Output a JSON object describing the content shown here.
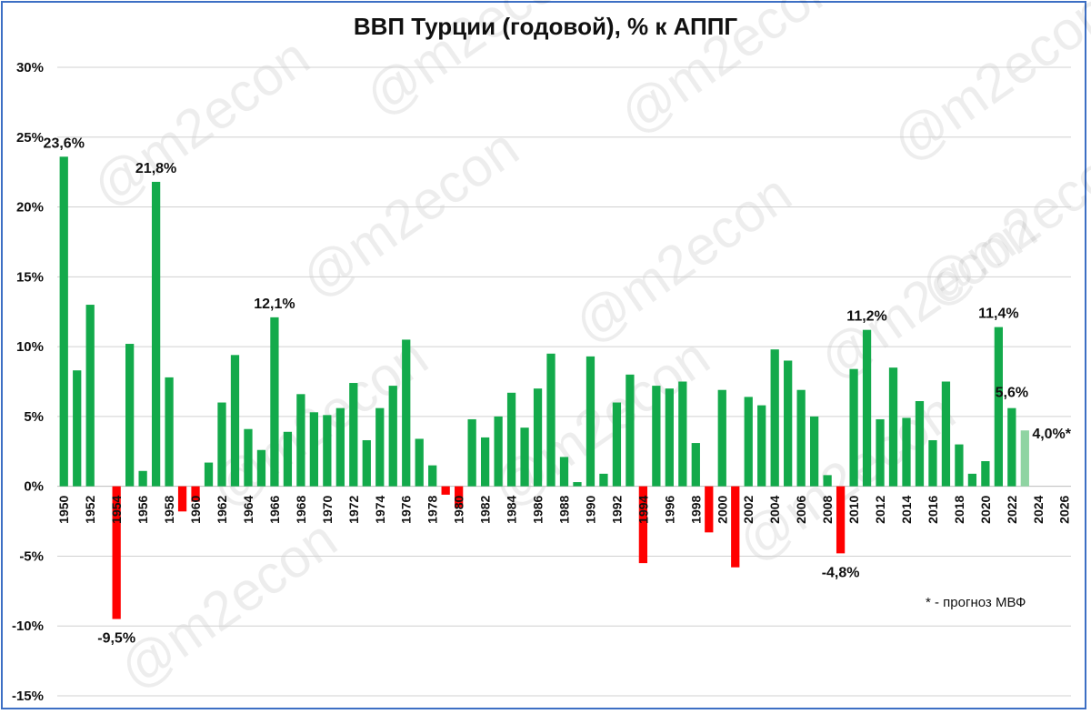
{
  "chart_data": {
    "type": "bar",
    "title": "ВВП Турции (годовой), % к АППГ",
    "ylim": [
      -15,
      30
    ],
    "y_ticks": [
      "-15%",
      "-10%",
      "-5%",
      "0%",
      "5%",
      "10%",
      "15%",
      "20%",
      "25%",
      "30%"
    ],
    "x_ticks": [
      "1950",
      "1952",
      "1954",
      "1956",
      "1958",
      "1960",
      "1962",
      "1964",
      "1966",
      "1968",
      "1970",
      "1972",
      "1974",
      "1976",
      "1978",
      "1980",
      "1982",
      "1984",
      "1986",
      "1988",
      "1990",
      "1992",
      "1994",
      "1996",
      "1998",
      "2000",
      "2002",
      "2004",
      "2006",
      "2008",
      "2010",
      "2012",
      "2014",
      "2016",
      "2018",
      "2020",
      "2022",
      "2024",
      "2026"
    ],
    "grid": true,
    "colors": {
      "positive": "#13aa4b",
      "negative": "#ff0000",
      "forecast": "#8fd4a2",
      "grid": "#d0d0d0",
      "frame": "#3d6fc4"
    },
    "series": [
      {
        "values": [
          {
            "x": 1950,
            "y": 23.6
          },
          {
            "x": 1951,
            "y": 8.3
          },
          {
            "x": 1952,
            "y": 13.0
          },
          {
            "x": 1953,
            "y": null
          },
          {
            "x": 1954,
            "y": -9.5
          },
          {
            "x": 1955,
            "y": 10.2
          },
          {
            "x": 1956,
            "y": 1.1
          },
          {
            "x": 1957,
            "y": 21.8
          },
          {
            "x": 1958,
            "y": 7.8
          },
          {
            "x": 1959,
            "y": -1.8
          },
          {
            "x": 1960,
            "y": -1.1
          },
          {
            "x": 1961,
            "y": 1.7
          },
          {
            "x": 1962,
            "y": 6.0
          },
          {
            "x": 1963,
            "y": 9.4
          },
          {
            "x": 1964,
            "y": 4.1
          },
          {
            "x": 1965,
            "y": 2.6
          },
          {
            "x": 1966,
            "y": 12.1
          },
          {
            "x": 1967,
            "y": 3.9
          },
          {
            "x": 1968,
            "y": 6.6
          },
          {
            "x": 1969,
            "y": 5.3
          },
          {
            "x": 1970,
            "y": 5.1
          },
          {
            "x": 1971,
            "y": 5.6
          },
          {
            "x": 1972,
            "y": 7.4
          },
          {
            "x": 1973,
            "y": 3.3
          },
          {
            "x": 1974,
            "y": 5.6
          },
          {
            "x": 1975,
            "y": 7.2
          },
          {
            "x": 1976,
            "y": 10.5
          },
          {
            "x": 1977,
            "y": 3.4
          },
          {
            "x": 1978,
            "y": 1.5
          },
          {
            "x": 1979,
            "y": -0.6
          },
          {
            "x": 1980,
            "y": -1.5
          },
          {
            "x": 1981,
            "y": 4.8
          },
          {
            "x": 1982,
            "y": 3.5
          },
          {
            "x": 1983,
            "y": 5.0
          },
          {
            "x": 1984,
            "y": 6.7
          },
          {
            "x": 1985,
            "y": 4.2
          },
          {
            "x": 1986,
            "y": 7.0
          },
          {
            "x": 1987,
            "y": 9.5
          },
          {
            "x": 1988,
            "y": 2.1
          },
          {
            "x": 1989,
            "y": 0.3
          },
          {
            "x": 1990,
            "y": 9.3
          },
          {
            "x": 1991,
            "y": 0.9
          },
          {
            "x": 1992,
            "y": 6.0
          },
          {
            "x": 1993,
            "y": 8.0
          },
          {
            "x": 1994,
            "y": -5.5
          },
          {
            "x": 1995,
            "y": 7.2
          },
          {
            "x": 1996,
            "y": 7.0
          },
          {
            "x": 1997,
            "y": 7.5
          },
          {
            "x": 1998,
            "y": 3.1
          },
          {
            "x": 1999,
            "y": -3.3
          },
          {
            "x": 2000,
            "y": 6.9
          },
          {
            "x": 2001,
            "y": -5.8
          },
          {
            "x": 2002,
            "y": 6.4
          },
          {
            "x": 2003,
            "y": 5.8
          },
          {
            "x": 2004,
            "y": 9.8
          },
          {
            "x": 2005,
            "y": 9.0
          },
          {
            "x": 2006,
            "y": 6.9
          },
          {
            "x": 2007,
            "y": 5.0
          },
          {
            "x": 2008,
            "y": 0.8
          },
          {
            "x": 2009,
            "y": -4.8
          },
          {
            "x": 2010,
            "y": 8.4
          },
          {
            "x": 2011,
            "y": 11.2
          },
          {
            "x": 2012,
            "y": 4.8
          },
          {
            "x": 2013,
            "y": 8.5
          },
          {
            "x": 2014,
            "y": 4.9
          },
          {
            "x": 2015,
            "y": 6.1
          },
          {
            "x": 2016,
            "y": 3.3
          },
          {
            "x": 2017,
            "y": 7.5
          },
          {
            "x": 2018,
            "y": 3.0
          },
          {
            "x": 2019,
            "y": 0.9
          },
          {
            "x": 2020,
            "y": 1.8
          },
          {
            "x": 2021,
            "y": 11.4
          },
          {
            "x": 2022,
            "y": 5.6
          },
          {
            "x": 2023,
            "y": 4.0,
            "forecast": true
          }
        ]
      }
    ],
    "annotations": [
      {
        "x": 1950,
        "y": 23.6,
        "text": "23,6%"
      },
      {
        "x": 1954,
        "y": -9.5,
        "text": "-9,5%"
      },
      {
        "x": 1957,
        "y": 21.8,
        "text": "21,8%"
      },
      {
        "x": 1966,
        "y": 12.1,
        "text": "12,1%"
      },
      {
        "x": 2009,
        "y": -4.8,
        "text": "-4,8%"
      },
      {
        "x": 2011,
        "y": 11.2,
        "text": "11,2%"
      },
      {
        "x": 2021,
        "y": 11.4,
        "text": "11,4%"
      },
      {
        "x": 2022,
        "y": 5.6,
        "text": "5,6%"
      },
      {
        "x": 2023,
        "y": 4.0,
        "text": "4,0%*"
      }
    ],
    "footnote": "* - прогноз МВФ",
    "watermark": "@m2econ"
  }
}
